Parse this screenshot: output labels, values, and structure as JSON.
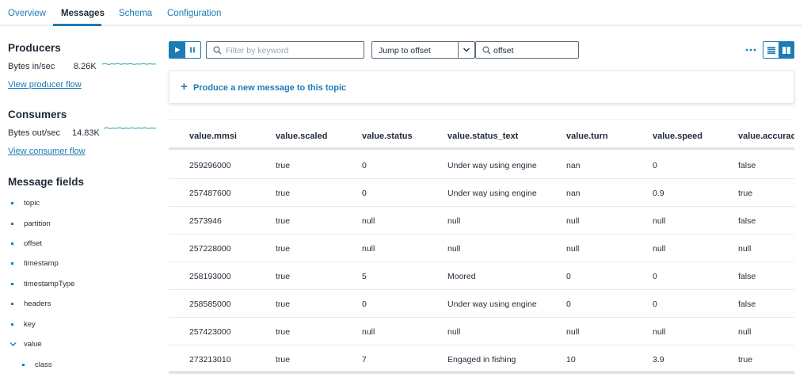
{
  "tabs": [
    {
      "label": "Overview"
    },
    {
      "label": "Messages"
    },
    {
      "label": "Schema"
    },
    {
      "label": "Configuration"
    }
  ],
  "producers": {
    "title": "Producers",
    "metric_label": "Bytes in/sec",
    "metric_value": "8.26K",
    "link": "View producer flow"
  },
  "consumers": {
    "title": "Consumers",
    "metric_label": "Bytes out/sec",
    "metric_value": "14.83K",
    "link": "View consumer flow"
  },
  "fields": {
    "title": "Message fields",
    "items": [
      {
        "label": "topic"
      },
      {
        "label": "partition"
      },
      {
        "label": "offset"
      },
      {
        "label": "timestamp"
      },
      {
        "label": "timestampType"
      },
      {
        "label": "headers"
      },
      {
        "label": "key"
      },
      {
        "label": "value"
      },
      {
        "label": "class"
      }
    ]
  },
  "toolbar": {
    "filter_placeholder": "Filter by keyword",
    "jump_label": "Jump to offset",
    "offset_value": "offset"
  },
  "produce": {
    "label": "Produce a new message to this topic"
  },
  "colors": {
    "accent": "#1c7bb5",
    "sparkline": "#2aa3b8"
  },
  "table": {
    "columns": [
      "value.mmsi",
      "value.scaled",
      "value.status",
      "value.status_text",
      "value.turn",
      "value.speed",
      "value.accuracy"
    ],
    "rows": [
      [
        "259296000",
        "true",
        "0",
        "Under way using engine",
        "nan",
        "0",
        "false"
      ],
      [
        "257487600",
        "true",
        "0",
        "Under way using engine",
        "nan",
        "0.9",
        "true"
      ],
      [
        "2573946",
        "true",
        "null",
        "null",
        "null",
        "null",
        "false"
      ],
      [
        "257228000",
        "true",
        "null",
        "null",
        "null",
        "null",
        "null"
      ],
      [
        "258193000",
        "true",
        "5",
        "Moored",
        "0",
        "0",
        "false"
      ],
      [
        "258585000",
        "true",
        "0",
        "Under way using engine",
        "0",
        "0",
        "false"
      ],
      [
        "257423000",
        "true",
        "null",
        "null",
        "null",
        "null",
        "null"
      ],
      [
        "273213010",
        "true",
        "7",
        "Engaged in fishing",
        "10",
        "3.9",
        "true"
      ]
    ]
  }
}
